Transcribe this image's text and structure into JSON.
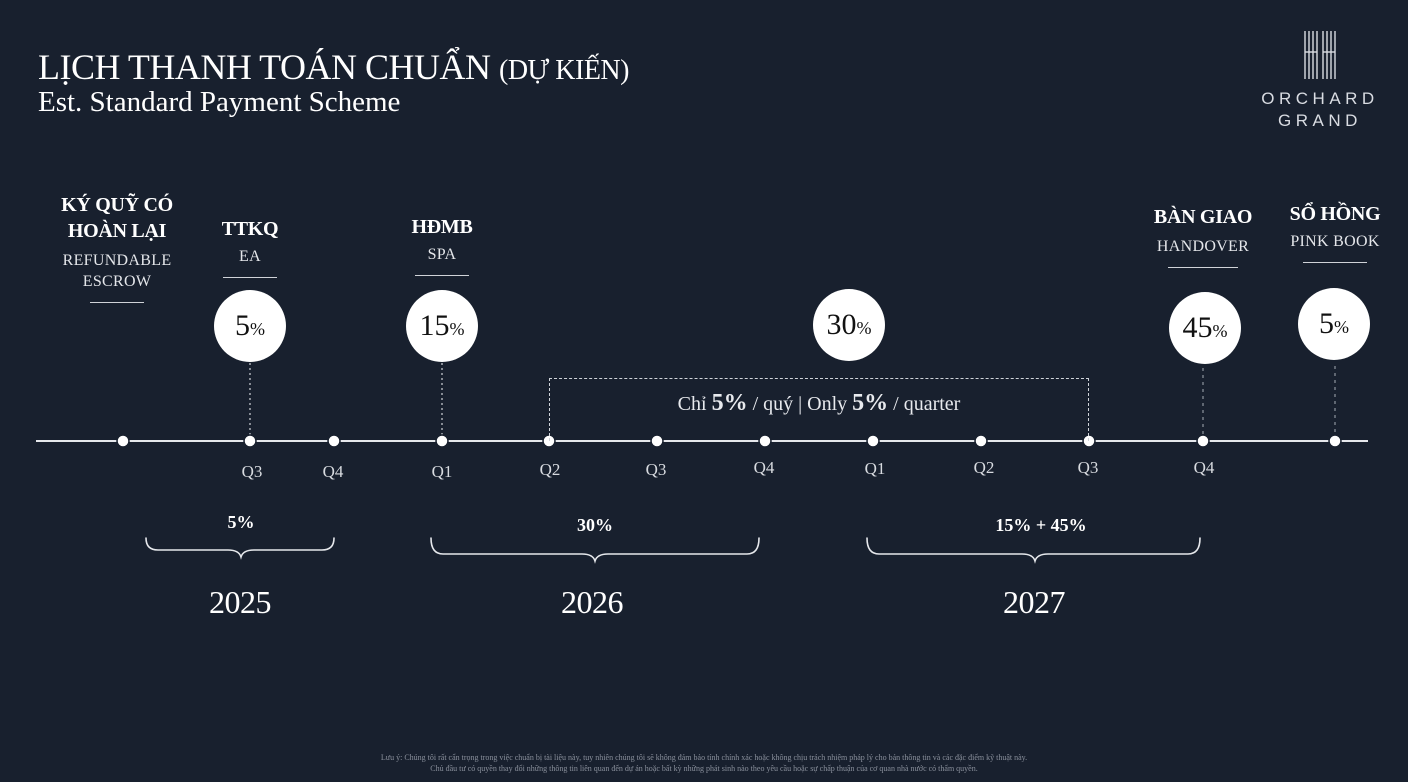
{
  "header": {
    "title_vi_main": "LỊCH THANH TOÁN CHUẨN",
    "title_vi_sub": "(DỰ KIẾN)",
    "title_en": "Est. Standard Payment Scheme"
  },
  "logo": {
    "line1": "ORCHARD",
    "line2": "GRAND",
    "icon": "orchard-grand-logo-icon"
  },
  "milestones": {
    "escrow": {
      "title_line1": "KÝ QUỸ CÓ",
      "title_line2": "HOÀN LẠI",
      "sub_line1": "REFUNDABLE",
      "sub_line2": "ESCROW"
    },
    "ea": {
      "title": "TTKQ",
      "sub": "EA",
      "value": "5",
      "unit": "%"
    },
    "spa": {
      "title": "HĐMB",
      "sub": "SPA",
      "value": "15",
      "unit": "%"
    },
    "installments": {
      "value": "30",
      "unit": "%"
    },
    "handover": {
      "title": "BÀN GIAO",
      "sub": "HANDOVER",
      "value": "45",
      "unit": "%"
    },
    "pinkbook": {
      "title": "SỔ HỒNG",
      "sub": "PINK BOOK",
      "value": "5",
      "unit": "%"
    }
  },
  "quarter_note": {
    "prefix": "Chỉ ",
    "pct1": "5%",
    "middle": " / quý | Only ",
    "pct2": "5%",
    "suffix": " / quarter"
  },
  "ticks": [
    "Q3",
    "Q4",
    "Q1",
    "Q2",
    "Q3",
    "Q4",
    "Q1",
    "Q2",
    "Q3",
    "Q4"
  ],
  "years": [
    {
      "label": "5%",
      "year": "2025"
    },
    {
      "label": "30%",
      "year": "2026"
    },
    {
      "label": "15% + 45%",
      "year": "2027"
    }
  ],
  "footnote": {
    "line1": "Lưu ý: Chúng tôi rất cẩn trọng trong việc chuẩn bị tài liệu này, tuy nhiên chúng tôi sẽ không đảm bảo tính chính xác hoặc không chịu trách nhiệm pháp lý cho bản thông tin và các đặc điểm kỹ thuật này.",
    "line2": "Chủ đầu tư có quyền thay đổi những thông tin liên quan đến dự án hoặc bất kỳ những phát sinh nào theo yêu cầu hoặc sự chấp thuận của cơ quan nhà nước có thẩm quyền."
  },
  "colors": {
    "background": "#18202e",
    "foreground": "#ffffff",
    "muted": "#d0d3d8"
  }
}
